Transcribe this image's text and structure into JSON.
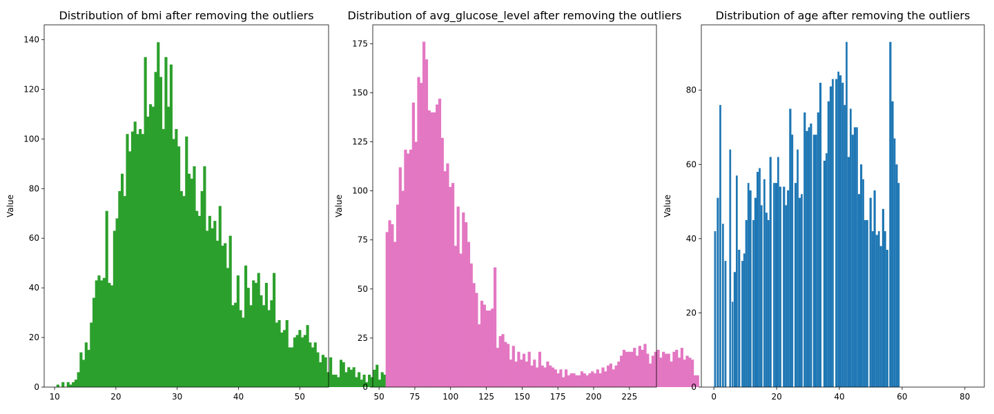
{
  "chart_data": [
    {
      "type": "bar",
      "title": "Distribution of bmi after removing the outliers",
      "xlabel": "",
      "ylabel": "Value",
      "color": "#2ca02c",
      "xlim": [
        8.3,
        54.7
      ],
      "ylim": [
        0,
        146
      ],
      "xticks": [
        10,
        20,
        30,
        40,
        50
      ],
      "yticks": [
        0,
        20,
        40,
        60,
        80,
        100,
        120,
        140
      ],
      "bin_start": 10.3,
      "bin_width": 0.42,
      "values": [
        1,
        0,
        2,
        0,
        2,
        1,
        2,
        3,
        6,
        14,
        11,
        18,
        15,
        26,
        36,
        43,
        45,
        43,
        44,
        71,
        42,
        41,
        63,
        68,
        79,
        86,
        77,
        102,
        95,
        103,
        107,
        102,
        104,
        102,
        133,
        109,
        114,
        113,
        127,
        139,
        125,
        104,
        133,
        113,
        130,
        100,
        104,
        97,
        79,
        77,
        101,
        86,
        84,
        89,
        71,
        69,
        79,
        89,
        63,
        69,
        64,
        67,
        59,
        73,
        57,
        58,
        48,
        61,
        33,
        34,
        45,
        31,
        28,
        49,
        40,
        33,
        43,
        42,
        46,
        37,
        33,
        42,
        31,
        35,
        46,
        26,
        27,
        22,
        23,
        27,
        16,
        16,
        20,
        21,
        23,
        20,
        21,
        25,
        18,
        16,
        18,
        14,
        10,
        13,
        12,
        6,
        12,
        5,
        5,
        4,
        11,
        10,
        6,
        8,
        7,
        8,
        4,
        6,
        3,
        5,
        2,
        5,
        4,
        7,
        9,
        3,
        6,
        5,
        5,
        4,
        3,
        5,
        10,
        9,
        4,
        5,
        3,
        2,
        4,
        12,
        3,
        3,
        5,
        2,
        1,
        1,
        1,
        3,
        3
      ]
    },
    {
      "type": "bar",
      "title": "Distribution of avg_glucose_level after removing the outliers",
      "xlabel": "",
      "ylabel": "Value",
      "color": "#e377c2",
      "xlim": [
        45.6,
        243.9
      ],
      "ylim": [
        0,
        184.6
      ],
      "xticks": [
        50,
        75,
        100,
        125,
        150,
        175,
        200,
        225
      ],
      "yticks": [
        0,
        25,
        50,
        75,
        100,
        125,
        150,
        175
      ],
      "bin_start": 54.6,
      "bin_width": 1.84,
      "values": [
        79,
        85,
        83,
        74,
        93,
        112,
        100,
        121,
        119,
        121,
        145,
        125,
        158,
        155,
        176,
        167,
        141,
        140,
        140,
        144,
        147,
        127,
        110,
        114,
        102,
        104,
        72,
        92,
        68,
        89,
        84,
        74,
        63,
        53,
        48,
        32,
        44,
        42,
        39,
        39,
        40,
        61,
        20,
        26,
        27,
        23,
        22,
        14,
        21,
        13,
        18,
        14,
        17,
        13,
        18,
        11,
        14,
        10,
        18,
        11,
        10,
        13,
        11,
        10,
        9,
        7,
        9,
        5,
        9,
        6,
        7,
        7,
        6,
        6,
        8,
        7,
        6,
        7,
        8,
        7,
        9,
        7,
        10,
        8,
        11,
        12,
        9,
        11,
        13,
        16,
        19,
        18,
        18,
        18,
        20,
        16,
        21,
        19,
        22,
        17,
        12,
        16,
        18,
        19,
        15,
        18,
        17,
        17,
        13,
        18,
        19,
        15,
        20,
        14,
        16,
        15,
        14,
        6,
        6
      ]
    },
    {
      "type": "bar",
      "title": "Distribution of age after removing the outliers",
      "xlabel": "",
      "ylabel": "Value",
      "color": "#1f77b4",
      "xlim": [
        -4.0,
        86.2
      ],
      "ylim": [
        0,
        97.6
      ],
      "xticks": [
        0,
        20,
        40,
        60,
        80
      ],
      "yticks": [
        0,
        20,
        40,
        60,
        80
      ],
      "bars": [
        [
          0.08,
          0.7,
          42
        ],
        [
          0.92,
          1.6,
          51
        ],
        [
          1.75,
          2.35,
          76
        ],
        [
          2.6,
          3.2,
          44
        ],
        [
          3.4,
          4.0,
          34
        ],
        [
          4.9,
          5.5,
          64
        ],
        [
          5.7,
          6.2,
          23
        ],
        [
          6.3,
          7.0,
          31
        ],
        [
          7.0,
          7.6,
          57
        ],
        [
          7.7,
          8.4,
          37
        ],
        [
          8.8,
          9.4,
          34
        ],
        [
          9.4,
          10.0,
          36
        ],
        [
          10.0,
          10.7,
          45
        ],
        [
          10.7,
          11.3,
          55
        ],
        [
          11.3,
          12.0,
          53
        ],
        [
          12.3,
          12.9,
          45
        ],
        [
          12.9,
          13.6,
          51
        ],
        [
          13.6,
          14.3,
          58
        ],
        [
          14.3,
          14.9,
          59
        ],
        [
          14.9,
          15.5,
          49
        ],
        [
          15.8,
          16.4,
          56
        ],
        [
          16.4,
          17.1,
          47
        ],
        [
          17.1,
          17.7,
          45
        ],
        [
          17.7,
          18.4,
          62
        ],
        [
          18.9,
          19.5,
          55
        ],
        [
          19.5,
          20.2,
          55
        ],
        [
          20.2,
          20.8,
          62
        ],
        [
          20.8,
          21.5,
          54
        ],
        [
          22.0,
          22.7,
          54
        ],
        [
          22.7,
          23.3,
          49
        ],
        [
          23.3,
          24.0,
          53
        ],
        [
          24.0,
          24.7,
          75
        ],
        [
          24.7,
          25.3,
          68
        ],
        [
          25.7,
          26.4,
          55
        ],
        [
          26.4,
          27.0,
          64
        ],
        [
          27.0,
          27.7,
          51
        ],
        [
          27.7,
          28.3,
          52
        ],
        [
          28.6,
          29.3,
          74
        ],
        [
          29.3,
          30.0,
          69
        ],
        [
          30.0,
          30.6,
          70
        ],
        [
          30.6,
          31.3,
          71
        ],
        [
          31.6,
          32.3,
          68
        ],
        [
          32.3,
          32.9,
          68
        ],
        [
          32.9,
          33.6,
          74
        ],
        [
          33.6,
          34.3,
          82
        ],
        [
          34.9,
          35.6,
          61
        ],
        [
          35.6,
          36.2,
          63
        ],
        [
          36.2,
          36.9,
          77
        ],
        [
          36.9,
          37.6,
          81
        ],
        [
          37.6,
          38.2,
          83
        ],
        [
          38.7,
          39.4,
          83
        ],
        [
          39.4,
          40.0,
          85
        ],
        [
          40.0,
          40.7,
          84
        ],
        [
          40.7,
          41.4,
          82
        ],
        [
          41.4,
          42.0,
          76
        ],
        [
          42.0,
          42.6,
          93
        ],
        [
          42.6,
          43.3,
          62
        ],
        [
          43.3,
          43.9,
          75
        ],
        [
          43.9,
          44.6,
          68
        ],
        [
          44.6,
          45.3,
          70
        ],
        [
          45.3,
          45.9,
          70
        ],
        [
          45.9,
          46.6,
          52
        ],
        [
          46.6,
          47.3,
          60
        ],
        [
          47.3,
          47.9,
          56
        ],
        [
          47.9,
          48.5,
          45
        ],
        [
          48.5,
          49.2,
          45
        ],
        [
          49.6,
          50.3,
          51
        ],
        [
          50.3,
          50.9,
          42
        ],
        [
          50.9,
          51.6,
          53
        ],
        [
          51.6,
          52.3,
          41
        ],
        [
          52.3,
          52.9,
          42
        ],
        [
          52.9,
          53.6,
          38
        ],
        [
          53.6,
          54.3,
          48
        ],
        [
          54.3,
          54.9,
          42
        ],
        [
          54.9,
          55.6,
          37
        ],
        [
          55.9,
          56.6,
          93
        ],
        [
          56.6,
          57.3,
          77
        ],
        [
          57.3,
          57.9,
          67
        ],
        [
          57.9,
          58.6,
          60
        ],
        [
          58.6,
          59.2,
          55
        ]
      ]
    }
  ]
}
